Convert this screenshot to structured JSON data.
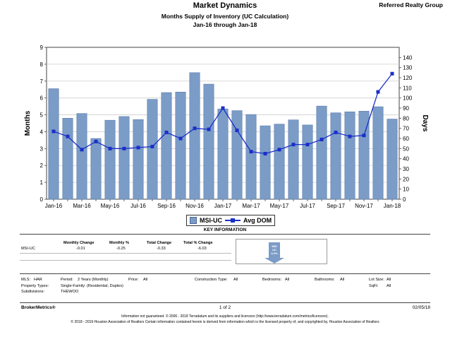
{
  "header": {
    "title": "Market Dynamics",
    "subtitle": "Months Supply of Inventory (UC Calculation)",
    "date_range": "Jan-16 through Jan-18",
    "agency": "Referred Realty Group"
  },
  "chart_data": {
    "type": "bar",
    "categories": [
      "Jan-16",
      "Feb-16",
      "Mar-16",
      "Apr-16",
      "May-16",
      "Jun-16",
      "Jul-16",
      "Aug-16",
      "Sep-16",
      "Oct-16",
      "Nov-16",
      "Dec-16",
      "Jan-17",
      "Feb-17",
      "Mar-17",
      "Apr-17",
      "May-17",
      "Jun-17",
      "Jul-17",
      "Aug-17",
      "Sep-17",
      "Oct-17",
      "Nov-17",
      "Dec-17",
      "Jan-18"
    ],
    "x_tick_labels": [
      "Jan-16",
      "Mar-16",
      "May-16",
      "Jul-16",
      "Sep-16",
      "Nov-16",
      "Jan-17",
      "Mar-17",
      "May-17",
      "Jul-17",
      "Sep-17",
      "Nov-17",
      "Jan-18"
    ],
    "series": [
      {
        "name": "MSI-UC",
        "type": "bar",
        "axis": "left",
        "color": "#7b9cc7",
        "values": [
          6.55,
          4.8,
          5.08,
          3.6,
          4.68,
          4.9,
          4.72,
          5.92,
          6.32,
          6.35,
          7.5,
          6.82,
          5.35,
          5.25,
          5.02,
          4.35,
          4.45,
          4.7,
          4.4,
          5.52,
          5.12,
          5.18,
          5.22,
          5.48,
          4.75
        ]
      },
      {
        "name": "Avg DOM",
        "type": "line",
        "axis": "right",
        "color": "#1a2fc9",
        "values": [
          67,
          62,
          49,
          57,
          50,
          50,
          51,
          52,
          66,
          60,
          70,
          69,
          90,
          68,
          47,
          45,
          49,
          54,
          54,
          59,
          66,
          62,
          63,
          106,
          124
        ]
      }
    ],
    "ylabel": "Months",
    "y2label": "Days",
    "ylim": [
      0,
      9
    ],
    "y_ticks": [
      0,
      1,
      2,
      3,
      4,
      5,
      6,
      7,
      8,
      9
    ],
    "y2lim": [
      0,
      150
    ],
    "y2_ticks": [
      0,
      10,
      20,
      30,
      40,
      50,
      60,
      70,
      80,
      90,
      100,
      110,
      120,
      130,
      140
    ],
    "grid": true,
    "legend": "bottom-center"
  },
  "key_information": {
    "title": "KEY INFORMATION",
    "headers": [
      "Monthly Change",
      "Monthly %",
      "Total Change",
      "Total % Change"
    ],
    "row_label": "MSI-UC",
    "values": [
      "-0.01",
      "-0.25",
      "-0.33",
      "-6.03"
    ],
    "thumbnail_text": [
      "MSI",
      "UC",
      "6.0%"
    ]
  },
  "criteria": {
    "mls_label": "MLS:",
    "mls_value": "HAR",
    "period_label": "Period:",
    "period_value": "2 Years (Monthly)",
    "price_label": "Price:",
    "price_value": "All",
    "construction_label": "Construction Type:",
    "construction_value": "All",
    "bedrooms_label": "Bedrooms:",
    "bedrooms_value": "All",
    "bathrooms_label": "Bathrooms:",
    "bathrooms_value": "All",
    "lotsize_label": "Lot Size:",
    "lotsize_value": "All",
    "property_label": "Property Types:",
    "property_value": "Single-Family: (Residential, Duplex)",
    "sqft_label": "SqFt:",
    "sqft_value": "All",
    "subdivisions_label": "Subdivisions:",
    "subdivisions_value": "THEWOO"
  },
  "footer": {
    "brand": "BrokerMetrics®",
    "page": "1 of 2",
    "date": "02/05/18",
    "disclaimer1": "Information not guaranteed. © 2006 - 2018 Terradatum and its suppliers and licensors (http://www.terradatum.com/metrics/licensors).",
    "disclaimer2": "© 2018 - 2019 Houston Association of Realtors Certain information contained herein is derived from information which is the licensed property of, and copyrighted by, Houston Association of Realtors"
  }
}
